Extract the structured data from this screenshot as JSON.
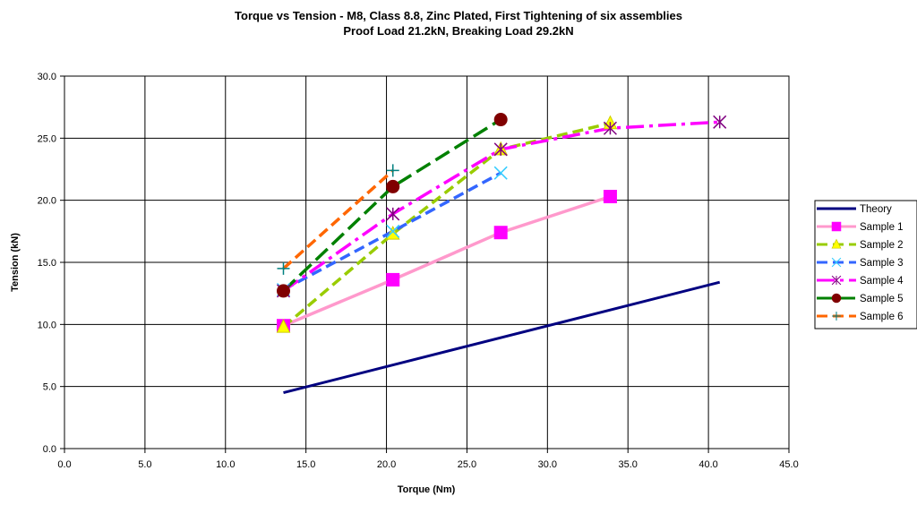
{
  "chart_data": {
    "type": "line",
    "title": "Torque vs Tension - M8, Class 8.8, Zinc Plated, First Tightening of six assemblies",
    "subtitle": "Proof Load 21.2kN, Breaking Load 29.2kN",
    "xlabel": "Torque (Nm)",
    "ylabel": "Tension (kN)",
    "xlim": [
      0,
      45
    ],
    "ylim": [
      0,
      30
    ],
    "x_ticks": [
      "0.0",
      "5.0",
      "10.0",
      "15.0",
      "20.0",
      "25.0",
      "30.0",
      "35.0",
      "40.0",
      "45.0"
    ],
    "y_ticks": [
      "0.0",
      "5.0",
      "10.0",
      "15.0",
      "20.0",
      "25.0",
      "30.0"
    ],
    "grid": true,
    "legend_position": "right",
    "series": [
      {
        "name": "Theory",
        "color": "#000080",
        "dash": "solid",
        "marker": "none",
        "x": [
          13.6,
          40.7
        ],
        "y": [
          4.5,
          13.4
        ]
      },
      {
        "name": "Sample 1",
        "color": "#ff99cc",
        "marker_color": "#ff00ff",
        "dash": "solid",
        "marker": "square",
        "x": [
          13.6,
          20.4,
          27.1,
          33.9
        ],
        "y": [
          9.9,
          13.6,
          17.4,
          20.3
        ]
      },
      {
        "name": "Sample 2",
        "color": "#99cc00",
        "marker_color": "#ffff00",
        "dash": "dash",
        "marker": "triangle",
        "x": [
          13.6,
          20.4,
          27.1,
          33.9
        ],
        "y": [
          9.8,
          17.3,
          24.1,
          26.2
        ]
      },
      {
        "name": "Sample 3",
        "color": "#3366ff",
        "marker_color": "#33ccff",
        "dash": "dash",
        "marker": "x",
        "x": [
          13.6,
          20.4,
          27.1
        ],
        "y": [
          12.8,
          17.5,
          22.2
        ]
      },
      {
        "name": "Sample 4",
        "color": "#ff00ff",
        "marker_color": "#800080",
        "dash": "dashdot",
        "marker": "asterisk",
        "x": [
          13.6,
          20.4,
          27.1,
          33.9,
          40.7
        ],
        "y": [
          12.7,
          18.9,
          24.1,
          25.8,
          26.3
        ]
      },
      {
        "name": "Sample 5",
        "color": "#008000",
        "marker_color": "#800000",
        "dash": "longdash",
        "marker": "circle",
        "x": [
          13.6,
          20.4,
          27.1
        ],
        "y": [
          12.7,
          21.1,
          26.5
        ]
      },
      {
        "name": "Sample 6",
        "color": "#ff6600",
        "marker_color": "#008080",
        "dash": "dash",
        "marker": "plus",
        "x": [
          13.6,
          20.4
        ],
        "y": [
          14.5,
          22.4
        ]
      }
    ]
  }
}
